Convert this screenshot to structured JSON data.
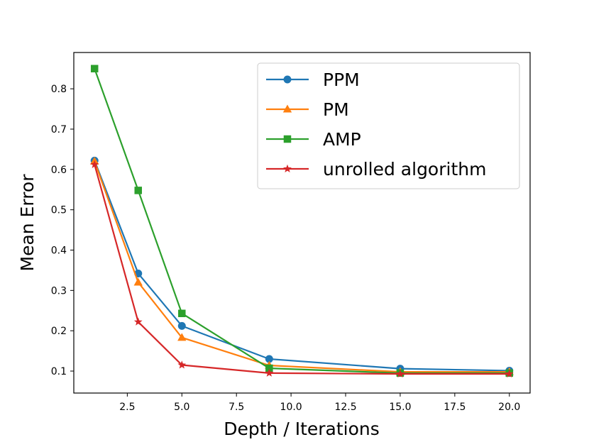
{
  "chart_data": {
    "type": "line",
    "title": "",
    "xlabel": "Depth / Iterations",
    "ylabel": "Mean Error",
    "xlim": [
      0.05,
      20.95
    ],
    "ylim": [
      0.0455,
      0.89
    ],
    "xticks": [
      2.5,
      5.0,
      7.5,
      10.0,
      12.5,
      15.0,
      17.5,
      20.0
    ],
    "xtick_labels": [
      "2.5",
      "5.0",
      "7.5",
      "10.0",
      "12.5",
      "15.0",
      "17.5",
      "20.0"
    ],
    "yticks": [
      0.1,
      0.2,
      0.3,
      0.4,
      0.5,
      0.6,
      0.7,
      0.8
    ],
    "ytick_labels": [
      "0.1",
      "0.2",
      "0.3",
      "0.4",
      "0.5",
      "0.6",
      "0.7",
      "0.8"
    ],
    "grid": false,
    "legend_position": "top-right",
    "x": [
      1,
      3,
      5,
      9,
      15,
      20
    ],
    "series": [
      {
        "name": "PPM",
        "color": "#1f77b4",
        "marker": "circle",
        "values": [
          0.622,
          0.342,
          0.212,
          0.13,
          0.106,
          0.101
        ]
      },
      {
        "name": "PM",
        "color": "#ff7f0e",
        "marker": "triangle",
        "values": [
          0.62,
          0.32,
          0.183,
          0.114,
          0.098,
          0.098
        ]
      },
      {
        "name": "AMP",
        "color": "#2ca02c",
        "marker": "square",
        "values": [
          0.85,
          0.548,
          0.243,
          0.107,
          0.095,
          0.095
        ]
      },
      {
        "name": "unrolled algorithm",
        "color": "#d62728",
        "marker": "star",
        "values": [
          0.612,
          0.222,
          0.115,
          0.095,
          0.093,
          0.093
        ]
      }
    ]
  }
}
